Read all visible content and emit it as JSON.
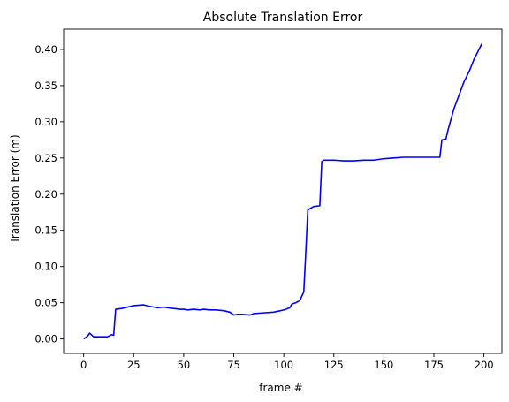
{
  "chart_data": {
    "type": "line",
    "title": "Absolute Translation Error",
    "xlabel": "frame #",
    "ylabel": "Translation Error (m)",
    "xlim": [
      -10,
      209
    ],
    "ylim": [
      -0.02,
      0.428
    ],
    "xticks": [
      0,
      25,
      50,
      75,
      100,
      125,
      150,
      175,
      200
    ],
    "yticks": [
      0.0,
      0.05,
      0.1,
      0.15,
      0.2,
      0.25,
      0.3,
      0.35,
      0.4
    ],
    "ytick_labels": [
      "0.00",
      "0.05",
      "0.10",
      "0.15",
      "0.20",
      "0.25",
      "0.30",
      "0.35",
      "0.40"
    ],
    "grid": false,
    "line_color": "#0000ff",
    "series": [
      {
        "x": [
          0,
          2,
          3,
          5,
          8,
          12,
          14,
          15,
          16,
          19,
          22,
          25,
          30,
          33,
          37,
          40,
          42,
          45,
          48,
          50,
          52,
          55,
          58,
          60,
          63,
          66,
          70,
          73,
          75,
          77,
          79,
          83,
          85,
          90,
          95,
          100,
          103,
          104,
          106,
          108,
          110,
          111,
          112,
          113,
          115,
          118,
          119,
          120,
          125,
          130,
          135,
          140,
          145,
          150,
          155,
          160,
          165,
          170,
          175,
          178,
          179,
          181,
          182,
          183,
          185,
          188,
          190,
          193,
          195,
          197,
          199
        ],
        "y": [
          0.0,
          0.004,
          0.008,
          0.003,
          0.003,
          0.003,
          0.006,
          0.005,
          0.041,
          0.042,
          0.044,
          0.046,
          0.047,
          0.045,
          0.043,
          0.044,
          0.043,
          0.042,
          0.041,
          0.041,
          0.04,
          0.041,
          0.04,
          0.041,
          0.04,
          0.04,
          0.039,
          0.037,
          0.033,
          0.034,
          0.034,
          0.033,
          0.035,
          0.036,
          0.037,
          0.04,
          0.043,
          0.048,
          0.05,
          0.053,
          0.065,
          0.12,
          0.178,
          0.18,
          0.183,
          0.184,
          0.245,
          0.247,
          0.247,
          0.246,
          0.246,
          0.247,
          0.247,
          0.249,
          0.25,
          0.251,
          0.251,
          0.251,
          0.251,
          0.251,
          0.275,
          0.276,
          0.288,
          0.298,
          0.318,
          0.34,
          0.355,
          0.372,
          0.386,
          0.397,
          0.408
        ]
      }
    ]
  }
}
